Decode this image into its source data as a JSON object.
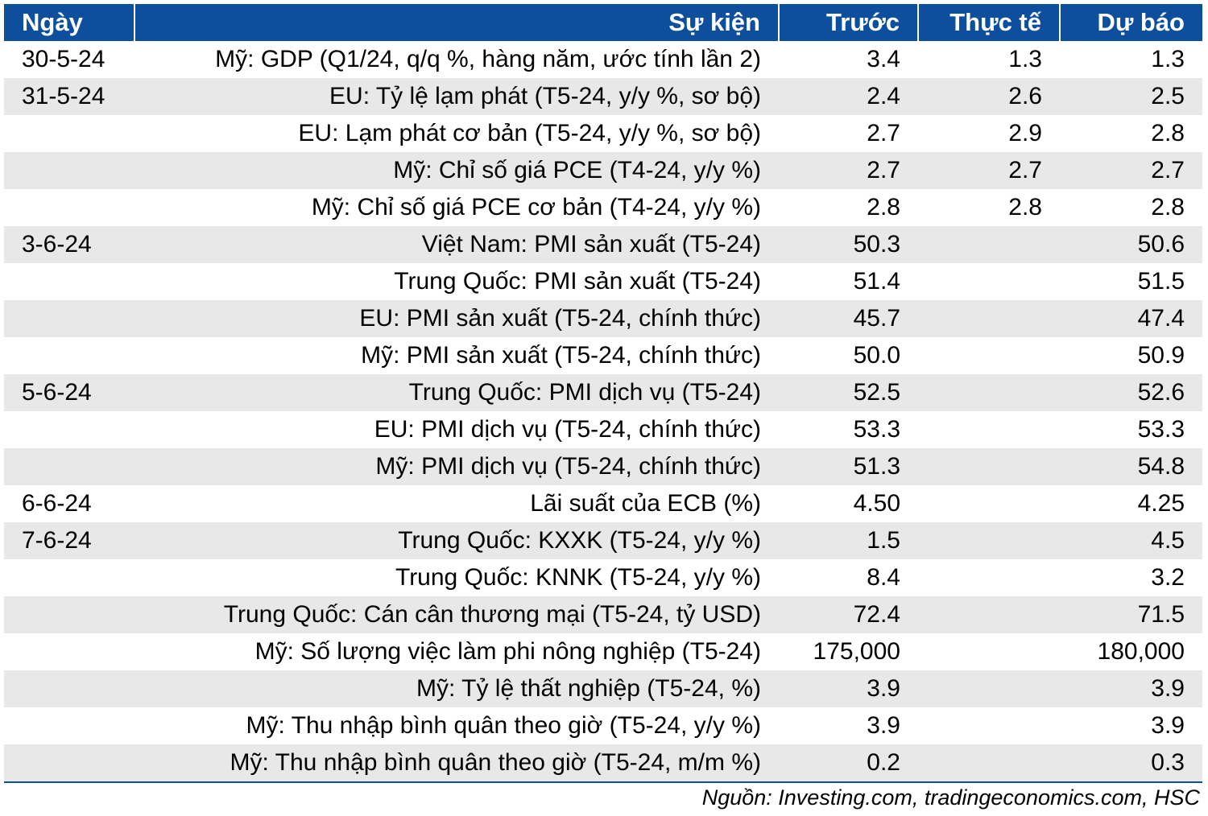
{
  "header": {
    "date": "Ngày",
    "event": "Sự kiện",
    "previous": "Trước",
    "actual": "Thực tế",
    "forecast": "Dự báo"
  },
  "rows": [
    {
      "date": "30-5-24",
      "event": "Mỹ: GDP (Q1/24, q/q %, hàng năm, ước tính lần 2)",
      "previous": "3.4",
      "actual": "1.3",
      "forecast": "1.3"
    },
    {
      "date": "31-5-24",
      "event": "EU: Tỷ lệ lạm phát (T5-24, y/y %, sơ bộ)",
      "previous": "2.4",
      "actual": "2.6",
      "forecast": "2.5"
    },
    {
      "date": "",
      "event": "EU: Lạm phát cơ bản (T5-24, y/y %, sơ bộ)",
      "previous": "2.7",
      "actual": "2.9",
      "forecast": "2.8"
    },
    {
      "date": "",
      "event": "Mỹ: Chỉ số giá PCE (T4-24, y/y %)",
      "previous": "2.7",
      "actual": "2.7",
      "forecast": "2.7"
    },
    {
      "date": "",
      "event": "Mỹ: Chỉ số giá PCE cơ bản (T4-24, y/y %)",
      "previous": "2.8",
      "actual": "2.8",
      "forecast": "2.8"
    },
    {
      "date": "3-6-24",
      "event": "Việt Nam: PMI sản xuất (T5-24)",
      "previous": "50.3",
      "actual": "",
      "forecast": "50.6"
    },
    {
      "date": "",
      "event": "Trung Quốc: PMI sản xuất (T5-24)",
      "previous": "51.4",
      "actual": "",
      "forecast": "51.5"
    },
    {
      "date": "",
      "event": "EU: PMI sản xuất (T5-24, chính thức)",
      "previous": "45.7",
      "actual": "",
      "forecast": "47.4"
    },
    {
      "date": "",
      "event": "Mỹ: PMI sản xuất (T5-24, chính thức)",
      "previous": "50.0",
      "actual": "",
      "forecast": "50.9"
    },
    {
      "date": "5-6-24",
      "event": "Trung Quốc: PMI dịch vụ (T5-24)",
      "previous": "52.5",
      "actual": "",
      "forecast": "52.6"
    },
    {
      "date": "",
      "event": "EU: PMI dịch vụ (T5-24, chính thức)",
      "previous": "53.3",
      "actual": "",
      "forecast": "53.3"
    },
    {
      "date": "",
      "event": "Mỹ: PMI dịch vụ (T5-24, chính thức)",
      "previous": "51.3",
      "actual": "",
      "forecast": "54.8"
    },
    {
      "date": "6-6-24",
      "event": "Lãi suất của ECB (%)",
      "previous": "4.50",
      "actual": "",
      "forecast": "4.25"
    },
    {
      "date": "7-6-24",
      "event": "Trung Quốc: KXXK (T5-24, y/y %)",
      "previous": "1.5",
      "actual": "",
      "forecast": "4.5"
    },
    {
      "date": "",
      "event": "Trung Quốc: KNNK (T5-24, y/y %)",
      "previous": "8.4",
      "actual": "",
      "forecast": "3.2"
    },
    {
      "date": "",
      "event": "Trung Quốc: Cán cân thương mại (T5-24, tỷ USD)",
      "previous": "72.4",
      "actual": "",
      "forecast": "71.5"
    },
    {
      "date": "",
      "event": "Mỹ: Số lượng việc làm phi nông nghiệp (T5-24)",
      "previous": "175,000",
      "actual": "",
      "forecast": "180,000"
    },
    {
      "date": "",
      "event": "Mỹ: Tỷ lệ thất nghiệp (T5-24, %)",
      "previous": "3.9",
      "actual": "",
      "forecast": "3.9"
    },
    {
      "date": "",
      "event": "Mỹ: Thu nhập bình quân theo giờ (T5-24, y/y %)",
      "previous": "3.9",
      "actual": "",
      "forecast": "3.9"
    },
    {
      "date": "",
      "event": "Mỹ: Thu nhập bình quân theo giờ (T5-24, m/m %)",
      "previous": "0.2",
      "actual": "",
      "forecast": "0.3"
    }
  ],
  "source": "Nguồn: Investing.com, tradingeconomics.com, HSC",
  "colors": {
    "header_bg": "#0d4f9c",
    "header_text": "#ffffff",
    "stripe": "#e8e8e8"
  }
}
